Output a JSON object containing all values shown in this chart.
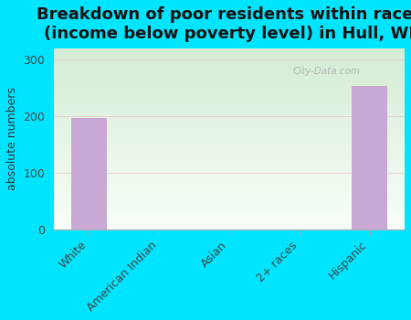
{
  "title": "Breakdown of poor residents within races\n(income below poverty level) in Hull, WI",
  "categories": [
    "White",
    "American Indian",
    "Asian",
    "2+ races",
    "Hispanic"
  ],
  "values": [
    197,
    0,
    0,
    0,
    254
  ],
  "bar_color": "#c9a8d4",
  "ylabel": "absolute numbers",
  "ylim": [
    0,
    320
  ],
  "yticks": [
    0,
    100,
    200,
    300
  ],
  "background_color": "#00e5ff",
  "title_fontsize": 13,
  "axis_label_fontsize": 9,
  "tick_fontsize": 9,
  "watermark": "City-Data.com",
  "grad_top": "#d4ecd4",
  "grad_bottom": "#f5fff5"
}
